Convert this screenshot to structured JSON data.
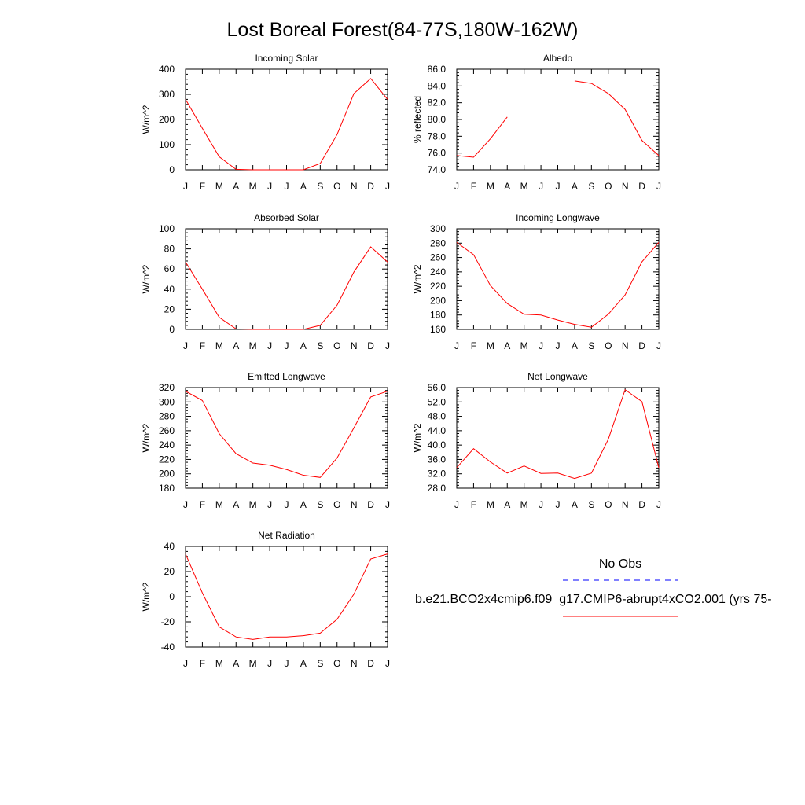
{
  "title": "Lost Boreal Forest(84-77S,180W-162W)",
  "chart_data": [
    {
      "type": "line",
      "title": "Incoming Solar",
      "ylabel": "W/m^2",
      "categories": [
        "J",
        "F",
        "M",
        "A",
        "M",
        "J",
        "J",
        "A",
        "S",
        "O",
        "N",
        "D",
        "J"
      ],
      "ylim": [
        0,
        400
      ],
      "yticks": [
        "0",
        "100",
        "200",
        "300",
        "400"
      ],
      "series": [
        {
          "color": "#ff0000",
          "values": [
            280,
            165,
            52,
            2,
            0,
            0,
            0,
            0,
            25,
            140,
            303,
            363,
            280
          ]
        }
      ]
    },
    {
      "type": "line",
      "title": "Albedo",
      "ylabel": "% reflected",
      "categories": [
        "J",
        "F",
        "M",
        "A",
        "M",
        "J",
        "J",
        "A",
        "S",
        "O",
        "N",
        "D",
        "J"
      ],
      "ylim": [
        74,
        86
      ],
      "yticks": [
        "74.0",
        "76.0",
        "78.0",
        "80.0",
        "82.0",
        "84.0",
        "86.0"
      ],
      "series": [
        {
          "color": "#ff0000",
          "values": [
            75.7,
            75.5,
            77.7,
            80.3,
            null,
            null,
            null,
            84.6,
            84.3,
            83.1,
            81.2,
            77.5,
            75.7
          ]
        }
      ]
    },
    {
      "type": "line",
      "title": "Absorbed Solar",
      "ylabel": "W/m^2",
      "categories": [
        "J",
        "F",
        "M",
        "A",
        "M",
        "J",
        "J",
        "A",
        "S",
        "O",
        "N",
        "D",
        "J"
      ],
      "ylim": [
        0,
        100
      ],
      "yticks": [
        "0",
        "20",
        "40",
        "60",
        "80",
        "100"
      ],
      "series": [
        {
          "color": "#ff0000",
          "values": [
            67,
            40,
            12,
            0.5,
            0,
            0,
            0,
            0,
            4,
            24,
            57,
            82,
            67
          ]
        }
      ]
    },
    {
      "type": "line",
      "title": "Incoming Longwave",
      "ylabel": "W/m^2",
      "categories": [
        "J",
        "F",
        "M",
        "A",
        "M",
        "J",
        "J",
        "A",
        "S",
        "O",
        "N",
        "D",
        "J"
      ],
      "ylim": [
        160,
        300
      ],
      "yticks": [
        "160",
        "180",
        "200",
        "220",
        "240",
        "260",
        "280",
        "300"
      ],
      "series": [
        {
          "color": "#ff0000",
          "values": [
            281,
            264,
            221,
            196,
            181,
            180,
            173,
            167,
            163,
            181,
            208,
            254,
            281
          ]
        }
      ]
    },
    {
      "type": "line",
      "title": "Emitted Longwave",
      "ylabel": "W/m^2",
      "categories": [
        "J",
        "F",
        "M",
        "A",
        "M",
        "J",
        "J",
        "A",
        "S",
        "O",
        "N",
        "D",
        "J"
      ],
      "ylim": [
        180,
        320
      ],
      "yticks": [
        "180",
        "200",
        "220",
        "240",
        "260",
        "280",
        "300",
        "320"
      ],
      "series": [
        {
          "color": "#ff0000",
          "values": [
            315,
            302,
            256,
            228,
            215,
            212,
            206,
            198,
            195,
            222,
            264,
            307,
            315
          ]
        }
      ]
    },
    {
      "type": "line",
      "title": "Net Longwave",
      "ylabel": "W/m^2",
      "categories": [
        "J",
        "F",
        "M",
        "A",
        "M",
        "J",
        "J",
        "A",
        "S",
        "O",
        "N",
        "D",
        "J"
      ],
      "ylim": [
        28,
        56
      ],
      "yticks": [
        "28.0",
        "32.0",
        "36.0",
        "40.0",
        "44.0",
        "48.0",
        "52.0",
        "56.0"
      ],
      "series": [
        {
          "color": "#ff0000",
          "values": [
            33.7,
            39.0,
            35.3,
            32.2,
            34.2,
            32.1,
            32.2,
            30.7,
            32.2,
            41.6,
            55.4,
            52.1,
            33.7
          ]
        }
      ]
    },
    {
      "type": "line",
      "title": "Net Radiation",
      "ylabel": "W/m^2",
      "categories": [
        "J",
        "F",
        "M",
        "A",
        "M",
        "J",
        "J",
        "A",
        "S",
        "O",
        "N",
        "D",
        "J"
      ],
      "ylim": [
        -40,
        40
      ],
      "yticks": [
        "-40",
        "-20",
        "0",
        "20",
        "40"
      ],
      "series": [
        {
          "color": "#ff0000",
          "values": [
            34,
            3,
            -24,
            -32,
            -34,
            -32,
            -32,
            -31,
            -29,
            -18,
            2,
            30,
            34
          ]
        }
      ]
    }
  ],
  "legend": {
    "items": [
      {
        "label": "No Obs",
        "color": "#0000ff",
        "dashed": true
      },
      {
        "label": "b.e21.BCO2x4cmip6.f09_g17.CMIP6-abrupt4xCO2.001 (yrs 75-",
        "color": "#ff0000",
        "dashed": false
      }
    ]
  }
}
